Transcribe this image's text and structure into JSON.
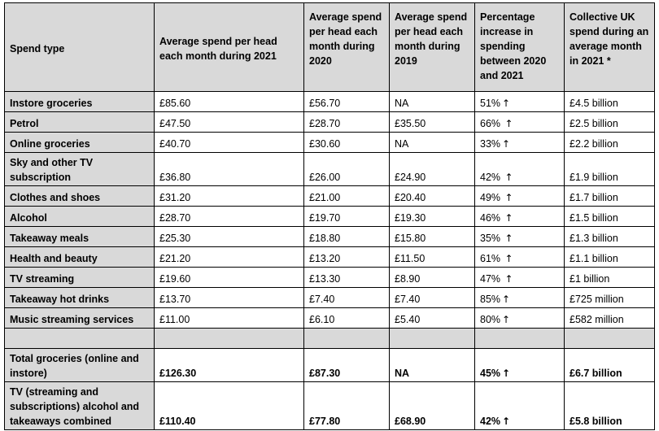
{
  "headers": {
    "spend_type": "Spend type",
    "avg_2021": "Average spend per head each month during 2021",
    "avg_2020": "Average spend per head each month during 2020",
    "avg_2019": "Average spend per head each month during 2019",
    "pct_increase": "Percentage increase in spending between 2020 and 2021",
    "collective": "Collective UK spend during an average month in 2021 *"
  },
  "rows": [
    {
      "type": "Instore groceries",
      "y2021": "£85.60",
      "y2020": "£56.70",
      "y2019": "NA",
      "pct": "51%",
      "arrow": "↑",
      "collective": "£4.5 billion"
    },
    {
      "type": "Petrol",
      "y2021": "£47.50",
      "y2020": "£28.70",
      "y2019": "£35.50",
      "pct": "66% ",
      "arrow": "↑",
      "collective": "£2.5 billion"
    },
    {
      "type": "Online groceries",
      "y2021": "£40.70",
      "y2020": "£30.60",
      "y2019": "NA",
      "pct": "33%",
      "arrow": "↑",
      "collective": "£2.2 billion"
    },
    {
      "type": "Sky and other TV subscription",
      "y2021": "£36.80",
      "y2020": "£26.00",
      "y2019": "£24.90",
      "pct": "42% ",
      "arrow": "↑",
      "collective": "£1.9 billion"
    },
    {
      "type": "Clothes and shoes",
      "y2021": "£31.20",
      "y2020": "£21.00",
      "y2019": "£20.40",
      "pct": "49% ",
      "arrow": "↑",
      "collective": "£1.7 billion"
    },
    {
      "type": "Alcohol",
      "y2021": "£28.70",
      "y2020": "£19.70",
      "y2019": "£19.30",
      "pct": "46% ",
      "arrow": "↑",
      "collective": "£1.5 billion"
    },
    {
      "type": "Takeaway meals",
      "y2021": "£25.30",
      "y2020": "£18.80",
      "y2019": "£15.80",
      "pct": "35% ",
      "arrow": "↑",
      "collective": "£1.3 billion"
    },
    {
      "type": "Health and beauty",
      "y2021": "£21.20",
      "y2020": "£13.20",
      "y2019": "£11.50",
      "pct": "61% ",
      "arrow": "↑",
      "collective": "£1.1 billion"
    },
    {
      "type": "TV streaming",
      "y2021": "£19.60",
      "y2020": "£13.30",
      "y2019": "£8.90",
      "pct": "47% ",
      "arrow": "↑",
      "collective": "£1 billion"
    },
    {
      "type": "Takeaway hot drinks",
      "y2021": "£13.70",
      "y2020": "£7.40",
      "y2019": "£7.40",
      "pct": "85%",
      "arrow": "↑",
      "collective": "£725 million"
    },
    {
      "type": "Music streaming services",
      "y2021": "£11.00",
      "y2020": "£6.10",
      "y2019": "£5.40",
      "pct": "80%",
      "arrow": "↑",
      "collective": "£582 million"
    }
  ],
  "totals": [
    {
      "type": "Total groceries (online and instore)",
      "y2021": "£126.30",
      "y2020": "£87.30",
      "y2019": "NA",
      "pct": "45%",
      "arrow": "↑",
      "collective": "£6.7 billion"
    },
    {
      "type": "TV (streaming and subscriptions) alcohol and takeaways combined",
      "y2021": "£110.40",
      "y2020": "£77.80",
      "y2019": "£68.90",
      "pct": "42%",
      "arrow": "↑",
      "collective": "£5.8 billion"
    }
  ],
  "colors": {
    "header_bg": "#d9d9d9",
    "border": "#000000"
  }
}
